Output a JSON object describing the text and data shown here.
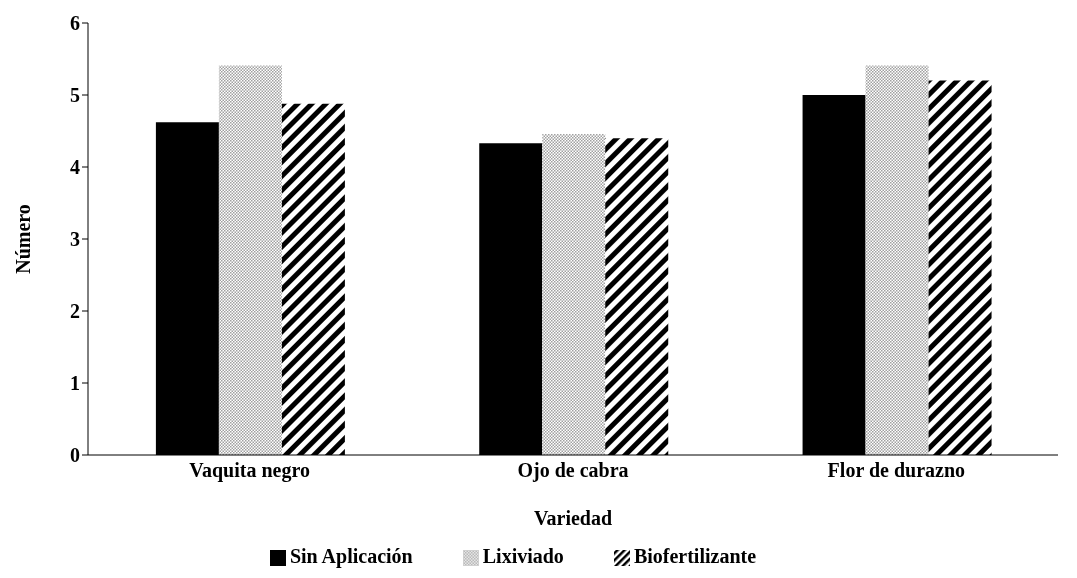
{
  "chart_data": {
    "type": "bar",
    "xlabel": "Variedad",
    "ylabel": "Número",
    "categories": [
      "Vaquita negro",
      "Ojo de cabra",
      "Flor de durazno"
    ],
    "series": [
      {
        "name": "Sin Aplicación",
        "color": "#000000",
        "values": [
          4.62,
          4.33,
          5.0
        ]
      },
      {
        "name": "Lixiviado",
        "color": "#a0a0a0",
        "values": [
          5.41,
          4.46,
          5.41
        ]
      },
      {
        "name": "Biofertilizante",
        "color": "#000000",
        "values": [
          4.88,
          4.4,
          5.2
        ]
      }
    ],
    "ylim": [
      0,
      6
    ],
    "yticks": [
      0,
      1,
      2,
      3,
      4,
      5,
      6
    ],
    "legend": "bottom"
  }
}
